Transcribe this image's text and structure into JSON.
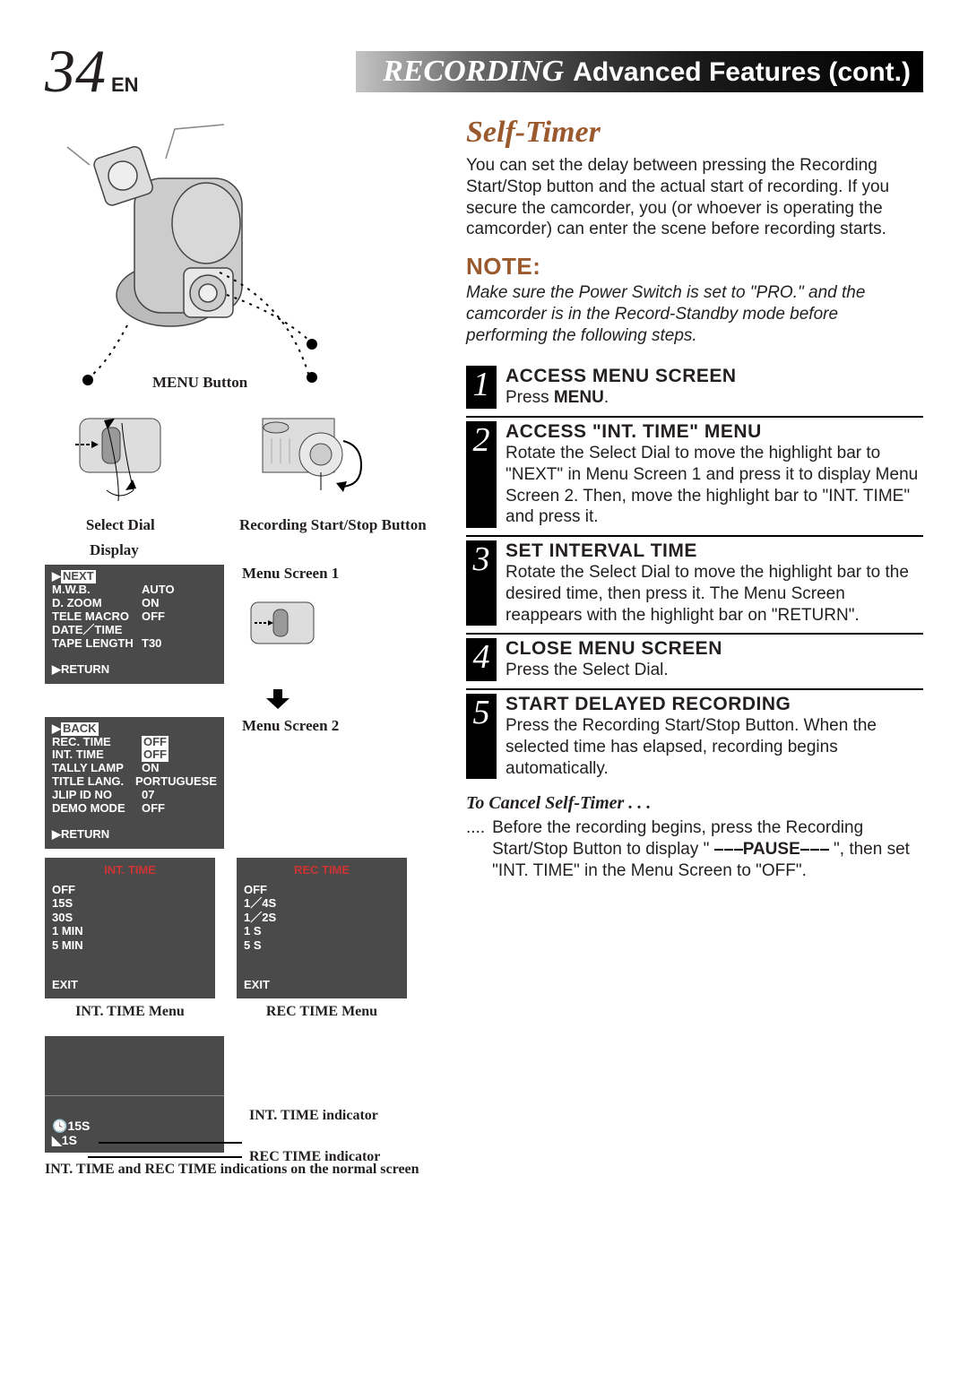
{
  "page_number": "34",
  "lang_code": "EN",
  "header": {
    "category": "RECORDING",
    "subtitle": "Advanced Features (cont.)"
  },
  "section_title": "Self-Timer",
  "intro": "You can set the delay between pressing the Recording Start/Stop button and the actual start of recording. If you secure the camcorder, you (or whoever is operating the camcorder) can enter the scene before recording starts.",
  "note_title": "NOTE:",
  "note_body": "Make sure the Power Switch is set to \"PRO.\" and the camcorder is in the Record-Standby mode before performing the following steps.",
  "steps": [
    {
      "n": "1",
      "title": "ACCESS MENU SCREEN",
      "text_pre": "Press ",
      "bold": "MENU",
      "text_post": "."
    },
    {
      "n": "2",
      "title": "ACCESS \"INT. TIME\" MENU",
      "text": "Rotate the Select Dial to move the highlight bar to \"NEXT\" in Menu Screen 1 and press it to display Menu Screen 2. Then, move the highlight bar to \"INT. TIME\" and press it."
    },
    {
      "n": "3",
      "title": "SET INTERVAL TIME",
      "text": "Rotate the Select Dial to move the highlight bar to the desired time, then press it. The Menu Screen reappears with the highlight bar on \"RETURN\"."
    },
    {
      "n": "4",
      "title": "CLOSE MENU SCREEN",
      "text": "Press the Select Dial."
    },
    {
      "n": "5",
      "title": "START DELAYED RECORDING",
      "text": "Press the Recording Start/Stop Button. When the selected time has elapsed, recording begins automatically."
    }
  ],
  "cancel_title": "To Cancel Self-Timer . . .",
  "cancel_dots": "....",
  "cancel_text_a": "Before the recording begins, press the Recording Start/Stop Button to display \" ",
  "cancel_bold": "PAUSE",
  "cancel_text_b": " \", then set \"INT. TIME\" in the Menu Screen to \"OFF\".",
  "diagram": {
    "menu_button": "MENU Button",
    "select_dial": "Select Dial",
    "rec_button": "Recording Start/Stop Button",
    "display": "Display",
    "screen1": "Menu Screen 1",
    "screen2": "Menu Screen 2"
  },
  "menu1": {
    "hl": "NEXT",
    "rows": [
      {
        "k": "M.W.B.",
        "v": "AUTO"
      },
      {
        "k": "D. ZOOM",
        "v": "ON"
      },
      {
        "k": "TELE MACRO",
        "v": "OFF"
      },
      {
        "k": "DATE／TIME",
        "v": ""
      },
      {
        "k": "TAPE LENGTH",
        "v": "T30"
      }
    ],
    "return": "RETURN"
  },
  "menu2": {
    "hl": "BACK",
    "rows": [
      {
        "k": "REC.  TIME",
        "v": "OFF",
        "vhl": true
      },
      {
        "k": "INT.   TIME",
        "v": "OFF",
        "vhl": true
      },
      {
        "k": "TALLY  LAMP",
        "v": "ON"
      },
      {
        "k": "TITLE  LANG.",
        "v": "PORTUGUESE"
      },
      {
        "k": "JLIP  ID  NO",
        "v": "07"
      },
      {
        "k": "DEMO MODE",
        "v": "OFF"
      }
    ],
    "return": "RETURN"
  },
  "int_time_menu": {
    "title": "INT.  TIME",
    "opts": [
      "OFF",
      "15S",
      "30S",
      "1  MIN",
      "5  MIN"
    ],
    "hl_index": 1,
    "exit": "EXIT",
    "caption": "INT. TIME Menu"
  },
  "rec_time_menu": {
    "title": "REC  TIME",
    "opts": [
      "OFF",
      "1／4S",
      "1／2S",
      "1  S",
      "5  S"
    ],
    "hl_index": 3,
    "exit": "EXIT",
    "caption": "REC TIME Menu"
  },
  "indicator": {
    "int_label": "INT. TIME indicator",
    "rec_label": "REC TIME indicator",
    "int_val": "15S",
    "rec_val": "1S",
    "caption": "INT. TIME and REC TIME indications on the normal screen"
  }
}
